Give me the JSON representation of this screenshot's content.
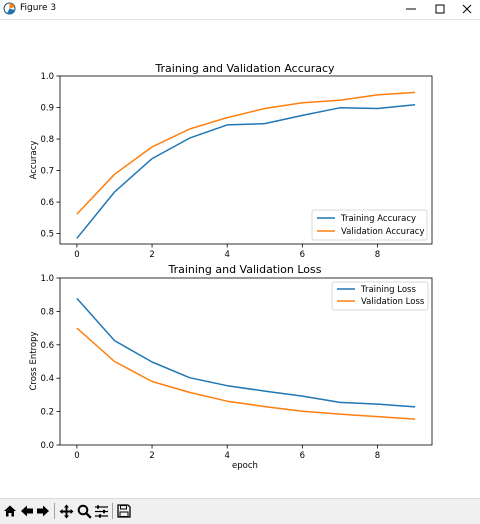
{
  "window": {
    "title": "Figure 3"
  },
  "toolbar": {
    "tools": [
      {
        "name": "home-icon",
        "label": "Home"
      },
      {
        "name": "back-arrow-icon",
        "label": "Back"
      },
      {
        "name": "forward-arrow-icon",
        "label": "Forward"
      },
      {
        "name": "pan-icon",
        "label": "Pan"
      },
      {
        "name": "zoom-icon",
        "label": "Zoom"
      },
      {
        "name": "subplots-icon",
        "label": "Configure subplots"
      },
      {
        "name": "save-icon",
        "label": "Save"
      }
    ]
  },
  "colors": {
    "series1": "#1f77b4",
    "series2": "#ff7f0e"
  },
  "chart_data": [
    {
      "type": "line",
      "title": "Training and Validation Accuracy",
      "xlabel": "",
      "ylabel": "Accuracy",
      "xlim": [
        -0.45,
        9.45
      ],
      "ylim": [
        0.467,
        1.0
      ],
      "xticks": [
        "0",
        "2",
        "4",
        "6",
        "8"
      ],
      "yticks": [
        "0.5",
        "0.6",
        "0.7",
        "0.8",
        "0.9",
        "1.0"
      ],
      "legend_position": "lower-right",
      "x": [
        0,
        1,
        2,
        3,
        4,
        5,
        6,
        7,
        8,
        9
      ],
      "series": [
        {
          "name": "Training Accuracy",
          "values": [
            0.485,
            0.632,
            0.738,
            0.803,
            0.845,
            0.849,
            0.875,
            0.899,
            0.897,
            0.909
          ]
        },
        {
          "name": "Validation Accuracy",
          "values": [
            0.562,
            0.688,
            0.775,
            0.832,
            0.868,
            0.897,
            0.915,
            0.923,
            0.94,
            0.948
          ]
        }
      ]
    },
    {
      "type": "line",
      "title": "Training and Validation Loss",
      "xlabel": "epoch",
      "ylabel": "Cross Entropy",
      "xlim": [
        -0.45,
        9.45
      ],
      "ylim": [
        0.0,
        1.0
      ],
      "xticks": [
        "0",
        "2",
        "4",
        "6",
        "8"
      ],
      "yticks": [
        "0.0",
        "0.2",
        "0.4",
        "0.6",
        "0.8",
        "1.0"
      ],
      "legend_position": "upper-right",
      "x": [
        0,
        1,
        2,
        3,
        4,
        5,
        6,
        7,
        8,
        9
      ],
      "series": [
        {
          "name": "Training Loss",
          "values": [
            0.878,
            0.625,
            0.497,
            0.403,
            0.355,
            0.323,
            0.293,
            0.255,
            0.245,
            0.228
          ]
        },
        {
          "name": "Validation Loss",
          "values": [
            0.7,
            0.5,
            0.38,
            0.315,
            0.262,
            0.23,
            0.202,
            0.185,
            0.17,
            0.155
          ]
        }
      ]
    }
  ]
}
